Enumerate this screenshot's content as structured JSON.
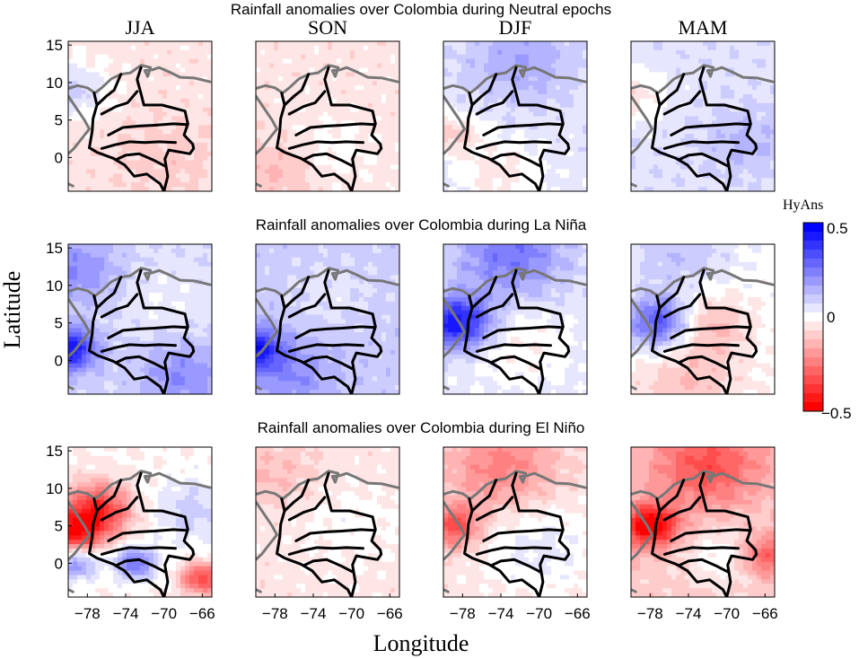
{
  "chart_data": {
    "type": "heatmap",
    "xlabel": "Longitude",
    "ylabel": "Latitude",
    "x_ticks": [
      "−78",
      "−74",
      "−70",
      "−66"
    ],
    "y_ticks": [
      "15",
      "10",
      "5",
      "0"
    ],
    "xlim": [
      -80,
      -65
    ],
    "ylim": [
      -4.5,
      15.5
    ],
    "seasons": [
      "JJA",
      "SON",
      "DJF",
      "MAM"
    ],
    "colorbar": {
      "label": "HyAns",
      "ticks": [
        "0.5",
        "0",
        "−0.5"
      ],
      "range": [
        -0.5,
        0.5
      ],
      "colors": {
        "max": "#0000ff",
        "mid": "#ffffff",
        "min": "#ff0000"
      }
    },
    "panels": [
      {
        "title": "Rainfall anomalies over Colombia during Neutral epochs",
        "anomalies": [
          {
            "season": "JJA",
            "mean": -0.05,
            "features": [
              [
                -79.5,
                9,
                2.5,
                0.15
              ],
              [
                -70,
                0,
                4,
                -0.05
              ]
            ]
          },
          {
            "season": "SON",
            "mean": -0.05,
            "features": [
              [
                -72,
                1,
                3,
                0.05
              ],
              [
                -78,
                -2,
                3,
                -0.08
              ]
            ]
          },
          {
            "season": "DJF",
            "mean": 0.05,
            "features": [
              [
                -72,
                13,
                4,
                0.12
              ],
              [
                -79,
                3,
                2,
                -0.15
              ],
              [
                -74,
                -2,
                3,
                -0.1
              ]
            ]
          },
          {
            "season": "MAM",
            "mean": 0.06,
            "features": [
              [
                -80,
                8,
                2.5,
                -0.12
              ],
              [
                -68,
                2,
                3,
                0.08
              ]
            ]
          }
        ]
      },
      {
        "title": "Rainfall anomalies over Colombia during La Niña",
        "anomalies": [
          {
            "season": "JJA",
            "mean": 0.08,
            "features": [
              [
                -80,
                1.5,
                2,
                0.4
              ],
              [
                -79,
                12,
                3,
                0.15
              ],
              [
                -70,
                8,
                4,
                -0.05
              ],
              [
                -68,
                -2,
                3,
                0.15
              ]
            ]
          },
          {
            "season": "SON",
            "mean": 0.1,
            "features": [
              [
                -80,
                1.5,
                2,
                0.35
              ],
              [
                -72,
                9,
                3,
                -0.05
              ],
              [
                -76,
                -2,
                3,
                0.12
              ]
            ]
          },
          {
            "season": "DJF",
            "mean": 0.05,
            "features": [
              [
                -78.5,
                5,
                2.5,
                0.42
              ],
              [
                -73,
                14,
                4,
                0.22
              ],
              [
                -72,
                2,
                4,
                -0.08
              ]
            ]
          },
          {
            "season": "MAM",
            "mean": 0.0,
            "features": [
              [
                -77,
                5,
                2.5,
                0.35
              ],
              [
                -72,
                5,
                3,
                -0.15
              ],
              [
                -74,
                -3,
                4,
                -0.12
              ],
              [
                -75,
                14,
                4,
                0.12
              ]
            ]
          }
        ]
      },
      {
        "title": "Rainfall anomalies over Colombia during El Niño",
        "anomalies": [
          {
            "season": "JJA",
            "mean": -0.02,
            "features": [
              [
                -77,
                7,
                2.5,
                -0.4
              ],
              [
                -79.5,
                4,
                2,
                -0.35
              ],
              [
                -67,
                7,
                3,
                0.12
              ],
              [
                -73,
                0,
                1.5,
                0.3
              ],
              [
                -79,
                0,
                1.5,
                0.25
              ],
              [
                -66,
                -2,
                1.5,
                -0.35
              ]
            ]
          },
          {
            "season": "SON",
            "mean": -0.05,
            "features": [
              [
                -70,
                5,
                4,
                0.05
              ],
              [
                -78,
                12,
                3,
                -0.08
              ]
            ]
          },
          {
            "season": "DJF",
            "mean": -0.05,
            "features": [
              [
                -79,
                5,
                2,
                -0.3
              ],
              [
                -74,
                13,
                4,
                -0.2
              ],
              [
                -70,
                2,
                4,
                0.1
              ]
            ]
          },
          {
            "season": "MAM",
            "mean": -0.1,
            "features": [
              [
                -78,
                5,
                2,
                -0.45
              ],
              [
                -72,
                13,
                4,
                -0.25
              ],
              [
                -70,
                1,
                3,
                0.12
              ],
              [
                -66,
                1,
                2,
                -0.25
              ]
            ]
          }
        ]
      }
    ]
  }
}
